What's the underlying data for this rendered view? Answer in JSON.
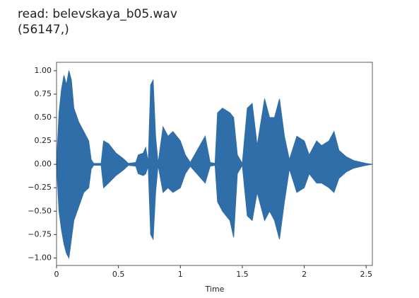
{
  "header": {
    "line1": "read: belevskaya_b05.wav",
    "line2": "(56147,)"
  },
  "chart_data": {
    "type": "waveform",
    "xlabel": "Time",
    "x": [
      0.0,
      0.02,
      0.04,
      0.06,
      0.08,
      0.1,
      0.12,
      0.14,
      0.18,
      0.22,
      0.26,
      0.28,
      0.3,
      0.36,
      0.38,
      0.42,
      0.48,
      0.54,
      0.58,
      0.64,
      0.66,
      0.7,
      0.72,
      0.74,
      0.76,
      0.78,
      0.8,
      0.82,
      0.86,
      0.9,
      0.94,
      1.0,
      1.04,
      1.08,
      1.2,
      1.24,
      1.28,
      1.3,
      1.34,
      1.4,
      1.43,
      1.46,
      1.5,
      1.54,
      1.58,
      1.62,
      1.68,
      1.72,
      1.76,
      1.8,
      1.84,
      1.88,
      1.94,
      2.0,
      2.04,
      2.1,
      2.14,
      2.2,
      2.24,
      2.28,
      2.34,
      2.4,
      2.5,
      2.55
    ],
    "series": [
      {
        "color": "#2f6ea8",
        "values": [
          0,
          0.55,
          0.8,
          0.95,
          0.85,
          1.0,
          0.9,
          0.6,
          0.45,
          0.35,
          0.25,
          0.05,
          0.01,
          0.01,
          0.25,
          0.22,
          0.12,
          0.06,
          0.01,
          0.02,
          0.1,
          0.12,
          0.18,
          0.02,
          0.85,
          0.9,
          0.3,
          0.01,
          0.4,
          0.3,
          0.35,
          0.25,
          0.1,
          0.02,
          0.3,
          0.02,
          0.01,
          0.55,
          0.6,
          0.55,
          0.5,
          0.1,
          0.01,
          0.6,
          0.65,
          0.2,
          0.7,
          0.5,
          0.5,
          0.7,
          0.3,
          0.05,
          0.3,
          0.25,
          0.1,
          0.25,
          0.2,
          0.25,
          0.35,
          0.15,
          0.08,
          0.04,
          0.01,
          0
        ]
      },
      {
        "color": "#2f6ea8",
        "values": [
          0,
          -0.5,
          -0.7,
          -0.85,
          -0.95,
          -1.0,
          -0.8,
          -0.6,
          -0.45,
          -0.3,
          -0.25,
          -0.05,
          -0.01,
          -0.01,
          -0.25,
          -0.2,
          -0.12,
          -0.06,
          -0.01,
          -0.02,
          -0.1,
          -0.12,
          -0.1,
          -0.02,
          -0.75,
          -0.8,
          -0.3,
          -0.01,
          -0.3,
          -0.25,
          -0.3,
          -0.25,
          -0.1,
          -0.02,
          -0.2,
          -0.02,
          -0.01,
          -0.4,
          -0.5,
          -0.6,
          -0.78,
          -0.1,
          -0.01,
          -0.55,
          -0.6,
          -0.3,
          -0.6,
          -0.5,
          -0.6,
          -0.8,
          -0.4,
          -0.05,
          -0.3,
          -0.25,
          -0.1,
          -0.2,
          -0.2,
          -0.25,
          -0.3,
          -0.15,
          -0.08,
          -0.04,
          -0.01,
          0
        ]
      }
    ],
    "xlim": [
      0,
      2.55
    ],
    "ylim": [
      -1.08,
      1.09
    ],
    "xticks": [
      0,
      0.5,
      1,
      1.5,
      2,
      2.5
    ],
    "yticks": [
      {
        "value": 1,
        "label": "1.00"
      },
      {
        "value": 0.75,
        "label": "0.75"
      },
      {
        "value": 0.5,
        "label": "0.50"
      },
      {
        "value": 0.25,
        "label": "0.25"
      },
      {
        "value": 0,
        "label": "0.00"
      },
      {
        "value": -0.25,
        "label": "−0.25"
      },
      {
        "value": -0.5,
        "label": "−0.50"
      },
      {
        "value": -0.75,
        "label": "−0.75"
      },
      {
        "value": -1,
        "label": "−1.00"
      }
    ]
  }
}
